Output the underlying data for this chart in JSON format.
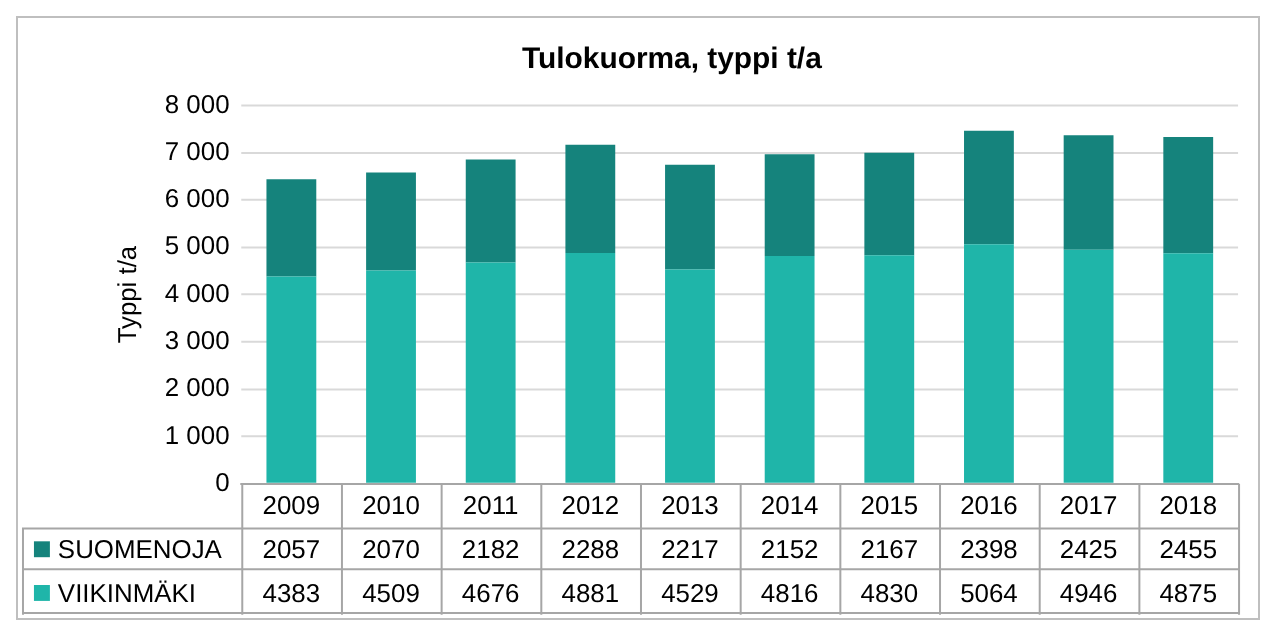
{
  "chart_data": {
    "type": "bar",
    "title": "Tulokuorma, typpi t/a",
    "ylabel": "Typpi t/a",
    "stacked": true,
    "categories": [
      "2009",
      "2010",
      "2011",
      "2012",
      "2013",
      "2014",
      "2015",
      "2016",
      "2017",
      "2018"
    ],
    "series": [
      {
        "name": "VIIKINMÄKI",
        "color": "#1fb5a9",
        "values": [
          4383,
          4509,
          4676,
          4881,
          4529,
          4816,
          4830,
          5064,
          4946,
          4875
        ]
      },
      {
        "name": "SUOMENOJA",
        "color": "#15837c",
        "values": [
          2057,
          2070,
          2182,
          2288,
          2217,
          2152,
          2167,
          2398,
          2425,
          2455
        ]
      }
    ],
    "ylim": [
      0,
      8000
    ],
    "yticks": [
      0,
      {
        "value": 1000,
        "label": "1 000"
      },
      {
        "value": 2000,
        "label": "2 000"
      },
      {
        "value": 3000,
        "label": "3 000"
      },
      {
        "value": 4000,
        "label": "4 000"
      },
      {
        "value": 5000,
        "label": "5 000"
      },
      {
        "value": 6000,
        "label": "6 000"
      },
      {
        "value": 7000,
        "label": "7 000"
      },
      {
        "value": 8000,
        "label": "8 000"
      }
    ],
    "grid": "y",
    "legend": "bottom",
    "data_labels": true
  }
}
